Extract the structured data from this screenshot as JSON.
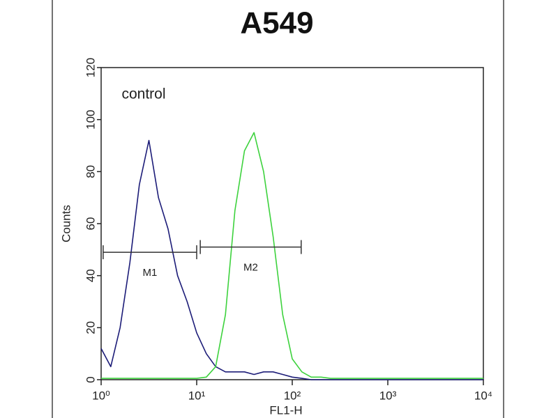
{
  "chart_data": {
    "type": "line",
    "title": "A549",
    "xlabel": "FL1-H",
    "ylabel": "Counts",
    "annotation": "control",
    "xscale": "log",
    "x": [
      1,
      1.26,
      1.58,
      2,
      2.51,
      3.16,
      3.98,
      5.01,
      6.31,
      7.94,
      10,
      12.6,
      15.8,
      20,
      25.1,
      31.6,
      39.8,
      50.1,
      63.1,
      79.4,
      100,
      126,
      158,
      200,
      251,
      316,
      398,
      501,
      631,
      794,
      1000,
      1260,
      1580,
      2000,
      2510,
      3160,
      3980,
      5010,
      6310,
      7940,
      10000
    ],
    "series": [
      {
        "name": "control",
        "color": "#1c1c78",
        "values": [
          12,
          5,
          20,
          45,
          75,
          92,
          70,
          58,
          40,
          30,
          18,
          10,
          5,
          3,
          3,
          3,
          2,
          3,
          3,
          2,
          1,
          0.5,
          0,
          0,
          0,
          0,
          0,
          0,
          0,
          0,
          0,
          0,
          0,
          0,
          0,
          0,
          0,
          0,
          0,
          0,
          0
        ]
      },
      {
        "color": "#3dd23d",
        "values": [
          0.5,
          0.5,
          0.5,
          0.5,
          0.5,
          0.5,
          0.5,
          0.5,
          0.5,
          0.5,
          0.5,
          1,
          5,
          25,
          65,
          88,
          95,
          80,
          55,
          25,
          8,
          3,
          1,
          1,
          0.5,
          0.5,
          0.5,
          0.5,
          0.5,
          0.5,
          0.5,
          0.5,
          0.5,
          0.5,
          0.5,
          0.5,
          0.5,
          0.5,
          0.5,
          0.5,
          0.5
        ]
      }
    ],
    "markers": [
      {
        "label": "M1",
        "range": [
          1.05,
          10
        ],
        "y": 49
      },
      {
        "label": "M2",
        "range": [
          10.9,
          124
        ],
        "y": 51
      }
    ],
    "xlim": [
      1,
      10000
    ],
    "xticks": [
      {
        "value": 1,
        "label": "10⁰"
      },
      {
        "value": 10,
        "label": "10¹"
      },
      {
        "value": 100,
        "label": "10²"
      },
      {
        "value": 1000,
        "label": "10³"
      },
      {
        "value": 10000,
        "label": "10⁴"
      }
    ],
    "ylim": [
      0,
      120
    ],
    "yticks": [
      0,
      20,
      40,
      60,
      80,
      100,
      120
    ]
  }
}
